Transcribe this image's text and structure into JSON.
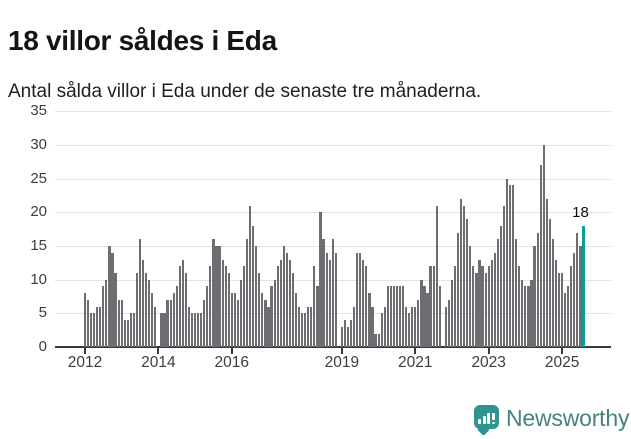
{
  "title": "18 villor såldes i Eda",
  "subtitle": "Antal sålda villor i Eda under de senaste tre månaderna.",
  "annotation": {
    "label": "18"
  },
  "branding": {
    "name": "Newsworthy",
    "icon": "newsworthy-bubble-chart-icon"
  },
  "colors": {
    "bar": "#6d6d72",
    "highlight": "#0b9c9c",
    "grid": "#e3e3e3",
    "axis": "#3a3a3a",
    "logo_icon": "#2f948f",
    "logo_text": "#46827e"
  },
  "chart_data": {
    "type": "bar",
    "title": "18 villor såldes i Eda",
    "subtitle": "Antal sålda villor i Eda under de senaste tre månaderna.",
    "ylabel": "",
    "xlabel": "",
    "ylim": [
      0,
      35
    ],
    "y_ticks": [
      0,
      5,
      10,
      15,
      20,
      25,
      30,
      35
    ],
    "x_tick_labels": [
      2012,
      2014,
      2016,
      2019,
      2021,
      2023,
      2025
    ],
    "start_month": "2012-01",
    "end_month": "2025-08",
    "grid": true,
    "highlight_last_bar": true,
    "highlight_value": 18,
    "series": [
      {
        "year": 2012,
        "monthly": [
          8,
          7,
          5,
          5,
          6,
          6,
          9,
          10,
          15,
          14,
          11,
          7
        ]
      },
      {
        "year": 2013,
        "monthly": [
          7,
          4,
          4,
          5,
          5,
          11,
          16,
          13,
          11,
          10,
          8,
          6
        ]
      },
      {
        "year": 2014,
        "monthly": [
          0,
          5,
          5,
          7,
          7,
          8,
          9,
          12,
          13,
          11,
          6,
          5
        ]
      },
      {
        "year": 2015,
        "monthly": [
          5,
          5,
          5,
          7,
          9,
          12,
          16,
          15,
          15,
          13,
          12,
          11
        ]
      },
      {
        "year": 2016,
        "monthly": [
          8,
          8,
          7,
          10,
          12,
          16,
          21,
          18,
          15,
          11,
          8,
          7
        ]
      },
      {
        "year": 2017,
        "monthly": [
          6,
          9,
          10,
          12,
          13,
          15,
          14,
          13,
          11,
          8,
          6,
          5
        ]
      },
      {
        "year": 2018,
        "monthly": [
          5,
          6,
          6,
          12,
          9,
          20,
          16,
          14,
          13,
          16,
          14,
          0
        ]
      },
      {
        "year": 2019,
        "monthly": [
          3,
          4,
          3,
          4,
          6,
          14,
          14,
          13,
          12,
          8,
          6,
          2
        ]
      },
      {
        "year": 2020,
        "monthly": [
          2,
          5,
          6,
          9,
          9,
          9,
          9,
          9,
          9,
          6,
          5,
          6
        ]
      },
      {
        "year": 2021,
        "monthly": [
          6,
          7,
          10,
          9,
          8,
          12,
          12,
          21,
          9,
          0,
          6,
          7
        ]
      },
      {
        "year": 2022,
        "monthly": [
          10,
          12,
          17,
          22,
          21,
          19,
          15,
          12,
          11,
          13,
          12,
          11
        ]
      },
      {
        "year": 2023,
        "monthly": [
          12,
          13,
          14,
          16,
          18,
          21,
          25,
          24,
          24,
          16,
          12,
          10
        ]
      },
      {
        "year": 2024,
        "monthly": [
          9,
          9,
          10,
          15,
          17,
          27,
          30,
          22,
          19,
          16,
          13,
          11
        ]
      },
      {
        "year": 2025,
        "monthly": [
          11,
          8,
          9,
          12,
          14,
          17,
          15,
          18
        ]
      }
    ]
  }
}
